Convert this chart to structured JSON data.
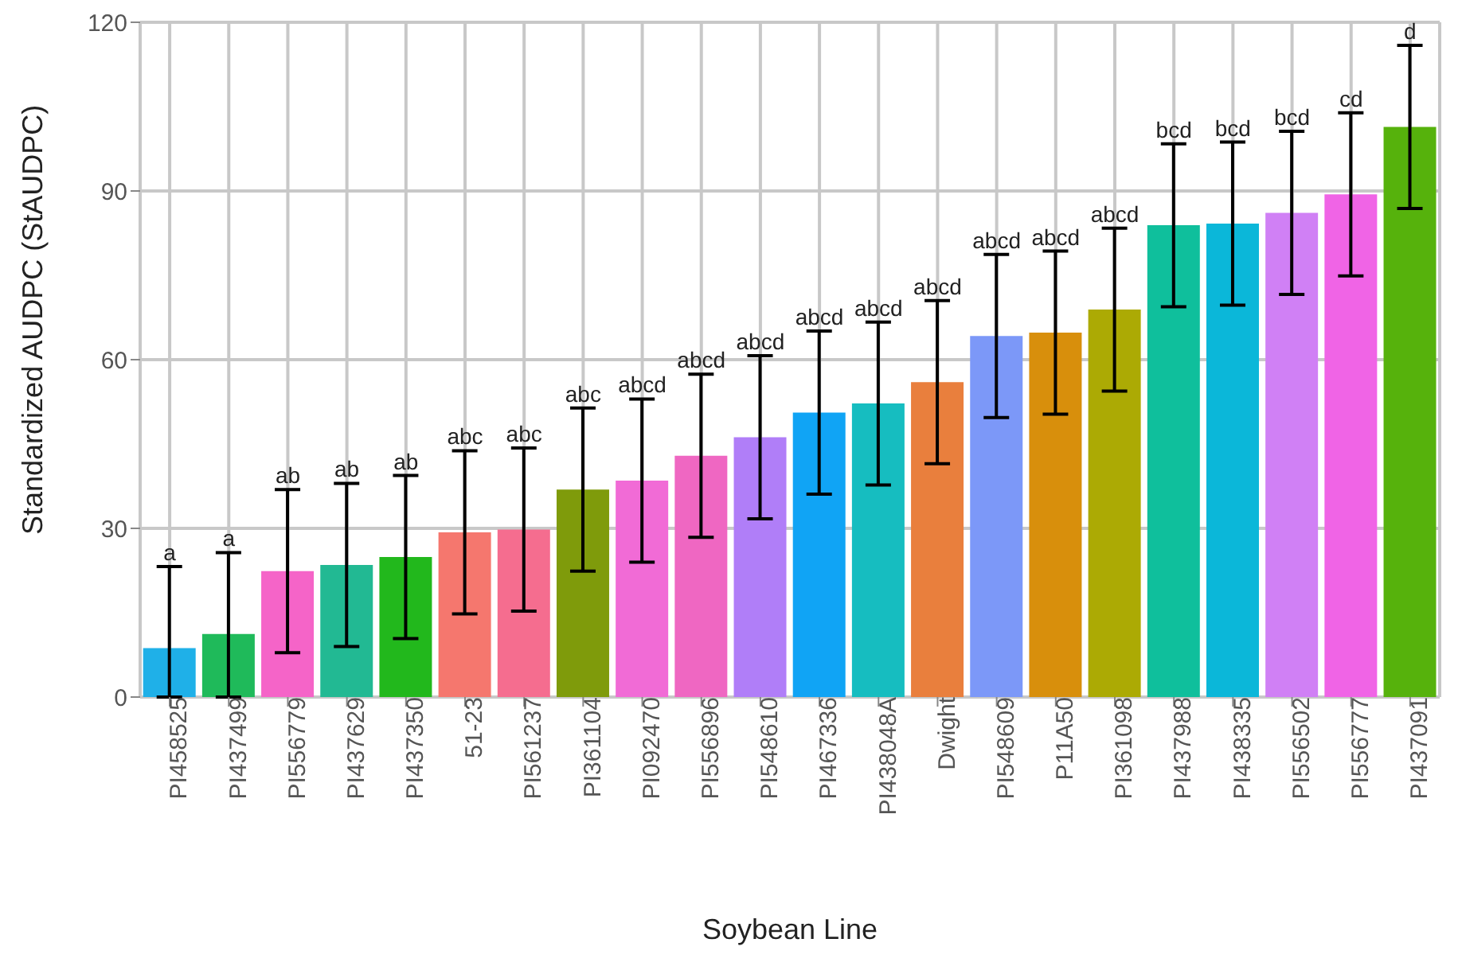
{
  "chart_data": {
    "type": "bar",
    "xlabel": "Soybean Line",
    "ylabel": "Standardized AUDPC (StAUDPC)",
    "categories": [
      "PI458525",
      "PI437499",
      "PI556779",
      "PI437629",
      "PI437350",
      "51-23",
      "PI561237",
      "PI361104",
      "PI092470",
      "PI556896",
      "PI548610",
      "PI467336",
      "PI438048A",
      "Dwight",
      "PI548609",
      "P11A50",
      "PI361098",
      "PI437988",
      "PI438335",
      "PI556502",
      "PI556777",
      "PI437091"
    ],
    "values": [
      8.7,
      11.2,
      22.4,
      23.5,
      24.9,
      29.3,
      29.8,
      36.9,
      38.5,
      42.9,
      46.2,
      50.6,
      52.2,
      56.0,
      64.2,
      64.8,
      68.9,
      83.9,
      84.2,
      86.1,
      89.4,
      101.4
    ],
    "errors": [
      [
        0,
        23.2
      ],
      [
        0,
        25.7
      ],
      14.5,
      14.5,
      14.5,
      14.5,
      14.5,
      14.5,
      14.5,
      14.5,
      14.5,
      14.5,
      14.5,
      14.5,
      14.5,
      14.5,
      14.5,
      14.5,
      14.5,
      14.5,
      14.5,
      14.5
    ],
    "annotations": [
      {
        "text": "a",
        "x": "PI458525",
        "y": 23.2
      },
      {
        "text": "a",
        "x": "PI437499",
        "y": 25.7
      },
      {
        "text": "ab",
        "x": "PI556779",
        "y": 36.9
      },
      {
        "text": "ab",
        "x": "PI437629",
        "y": 38
      },
      {
        "text": "ab",
        "x": "PI437350",
        "y": 39.4
      },
      {
        "text": "abc",
        "x": "51-23",
        "y": 43.8
      },
      {
        "text": "abc",
        "x": "PI561237",
        "y": 44.3
      },
      {
        "text": "abc",
        "x": "PI361104",
        "y": 51.4
      },
      {
        "text": "abcd",
        "x": "PI092470",
        "y": 53
      },
      {
        "text": "abcd",
        "x": "PI556896",
        "y": 57.4
      },
      {
        "text": "abcd",
        "x": "PI548610",
        "y": 60.7
      },
      {
        "text": "abcd",
        "x": "PI467336",
        "y": 65.1
      },
      {
        "text": "abcd",
        "x": "PI438048A",
        "y": 66.7
      },
      {
        "text": "abcd",
        "x": "Dwight",
        "y": 70.5
      },
      {
        "text": "abcd",
        "x": "PI548609",
        "y": 78.7
      },
      {
        "text": "abcd",
        "x": "P11A50",
        "y": 79.3
      },
      {
        "text": "abcd",
        "x": "PI361098",
        "y": 83.4
      },
      {
        "text": "bcd",
        "x": "PI437988",
        "y": 98.4
      },
      {
        "text": "bcd",
        "x": "PI438335",
        "y": 98.7
      },
      {
        "text": "bcd",
        "x": "PI556502",
        "y": 100.6
      },
      {
        "text": "cd",
        "x": "PI556777",
        "y": 103.9
      },
      {
        "text": "d",
        "x": "PI437091",
        "y": 115.9
      }
    ],
    "colors": [
      "#1fb0e8",
      "#1fba5a",
      "#f564c8",
      "#22b993",
      "#22b81c",
      "#f5776e",
      "#f56d8f",
      "#7f9b0b",
      "#f16bd6",
      "#ef67c2",
      "#b07ef8",
      "#10a4f5",
      "#16bdc0",
      "#e97f3d",
      "#7c98f8",
      "#d88f0c",
      "#acaa04",
      "#0fbf9c",
      "#0bb7d9",
      "#d080f5",
      "#f064e6",
      "#56b20c"
    ],
    "ylim": [
      0,
      120
    ],
    "yticks": [
      0,
      30,
      60,
      90,
      120
    ],
    "grid": true
  }
}
